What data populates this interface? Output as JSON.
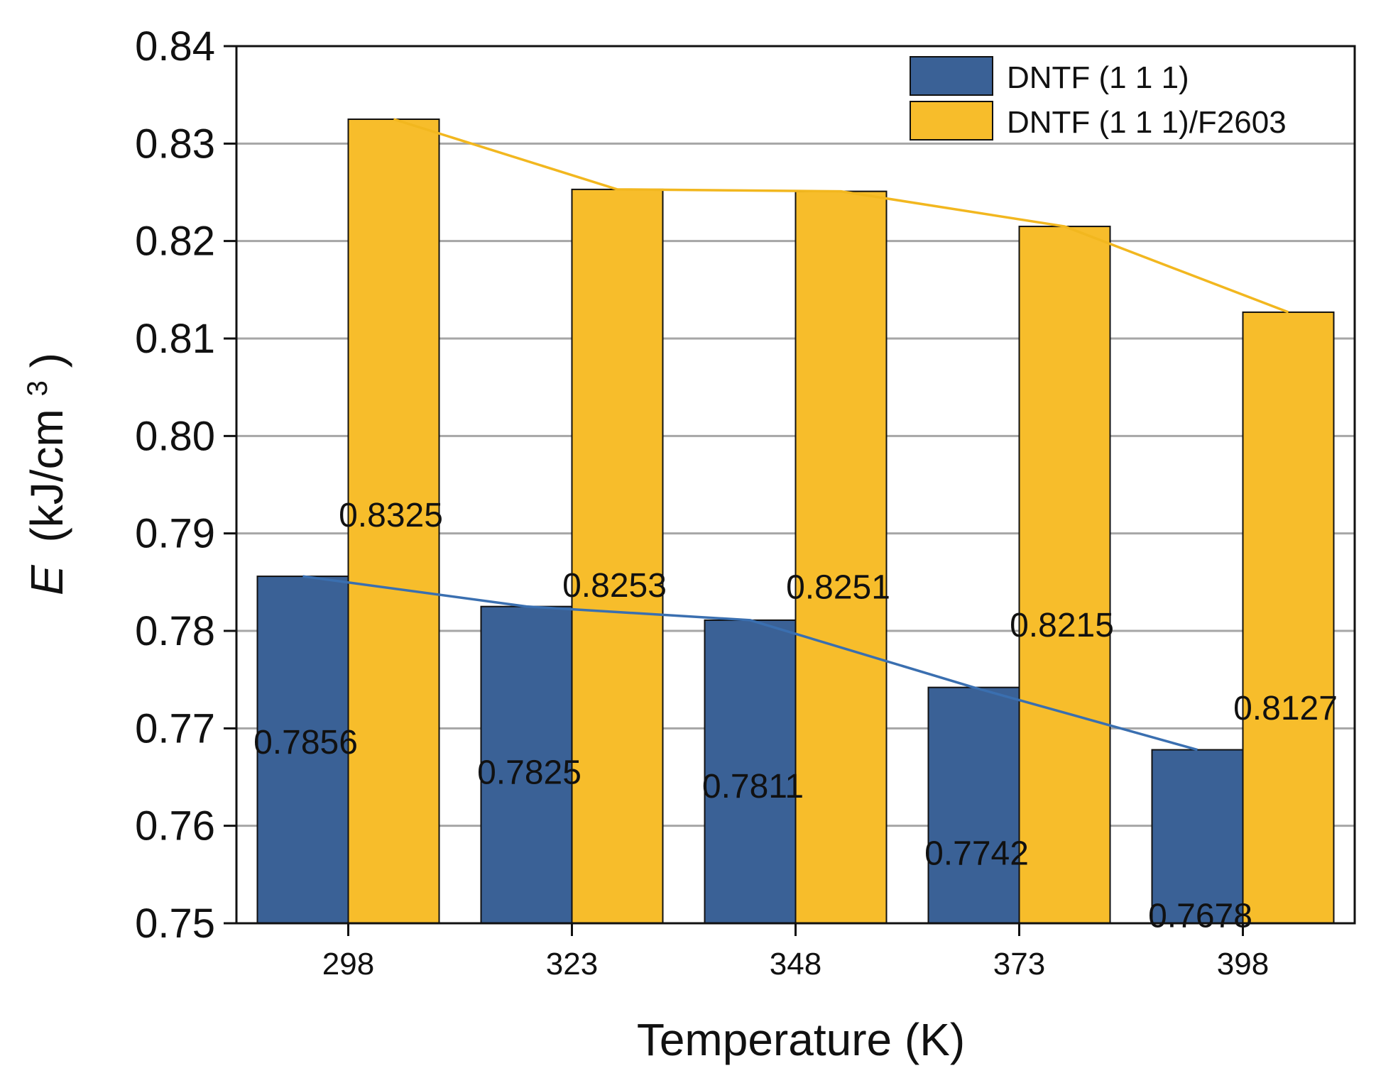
{
  "chart_data": {
    "type": "bar",
    "title": "",
    "xlabel": "Temperature (K)",
    "ylabel": {
      "symbol": "E",
      "unit": "(kJ/cm",
      "superscript": "3",
      "close": ")"
    },
    "categories": [
      "298",
      "323",
      "348",
      "373",
      "398"
    ],
    "ylim": [
      0.75,
      0.84
    ],
    "yticks": [
      "0.75",
      "0.76",
      "0.77",
      "0.78",
      "0.79",
      "0.80",
      "0.81",
      "0.82",
      "0.83",
      "0.84"
    ],
    "grid": true,
    "legend_position": "top-right",
    "series": [
      {
        "name": "DNTF (1 1 1)",
        "color": "#3a6196",
        "trend_color": "#3a6fb0",
        "values": [
          0.7856,
          0.7825,
          0.7811,
          0.7742,
          0.7678
        ],
        "labels": [
          "0.7856",
          "0.7825",
          "0.7811",
          "0.7742",
          "0.7678"
        ]
      },
      {
        "name": "DNTF (1 1 1)/F2603",
        "color": "#f7bd2b",
        "trend_color": "#f2b71f",
        "values": [
          0.8325,
          0.8253,
          0.8251,
          0.8215,
          0.8127
        ],
        "labels": [
          "0.8325",
          "0.8253",
          "0.8251",
          "0.8215",
          "0.8127"
        ]
      }
    ]
  }
}
